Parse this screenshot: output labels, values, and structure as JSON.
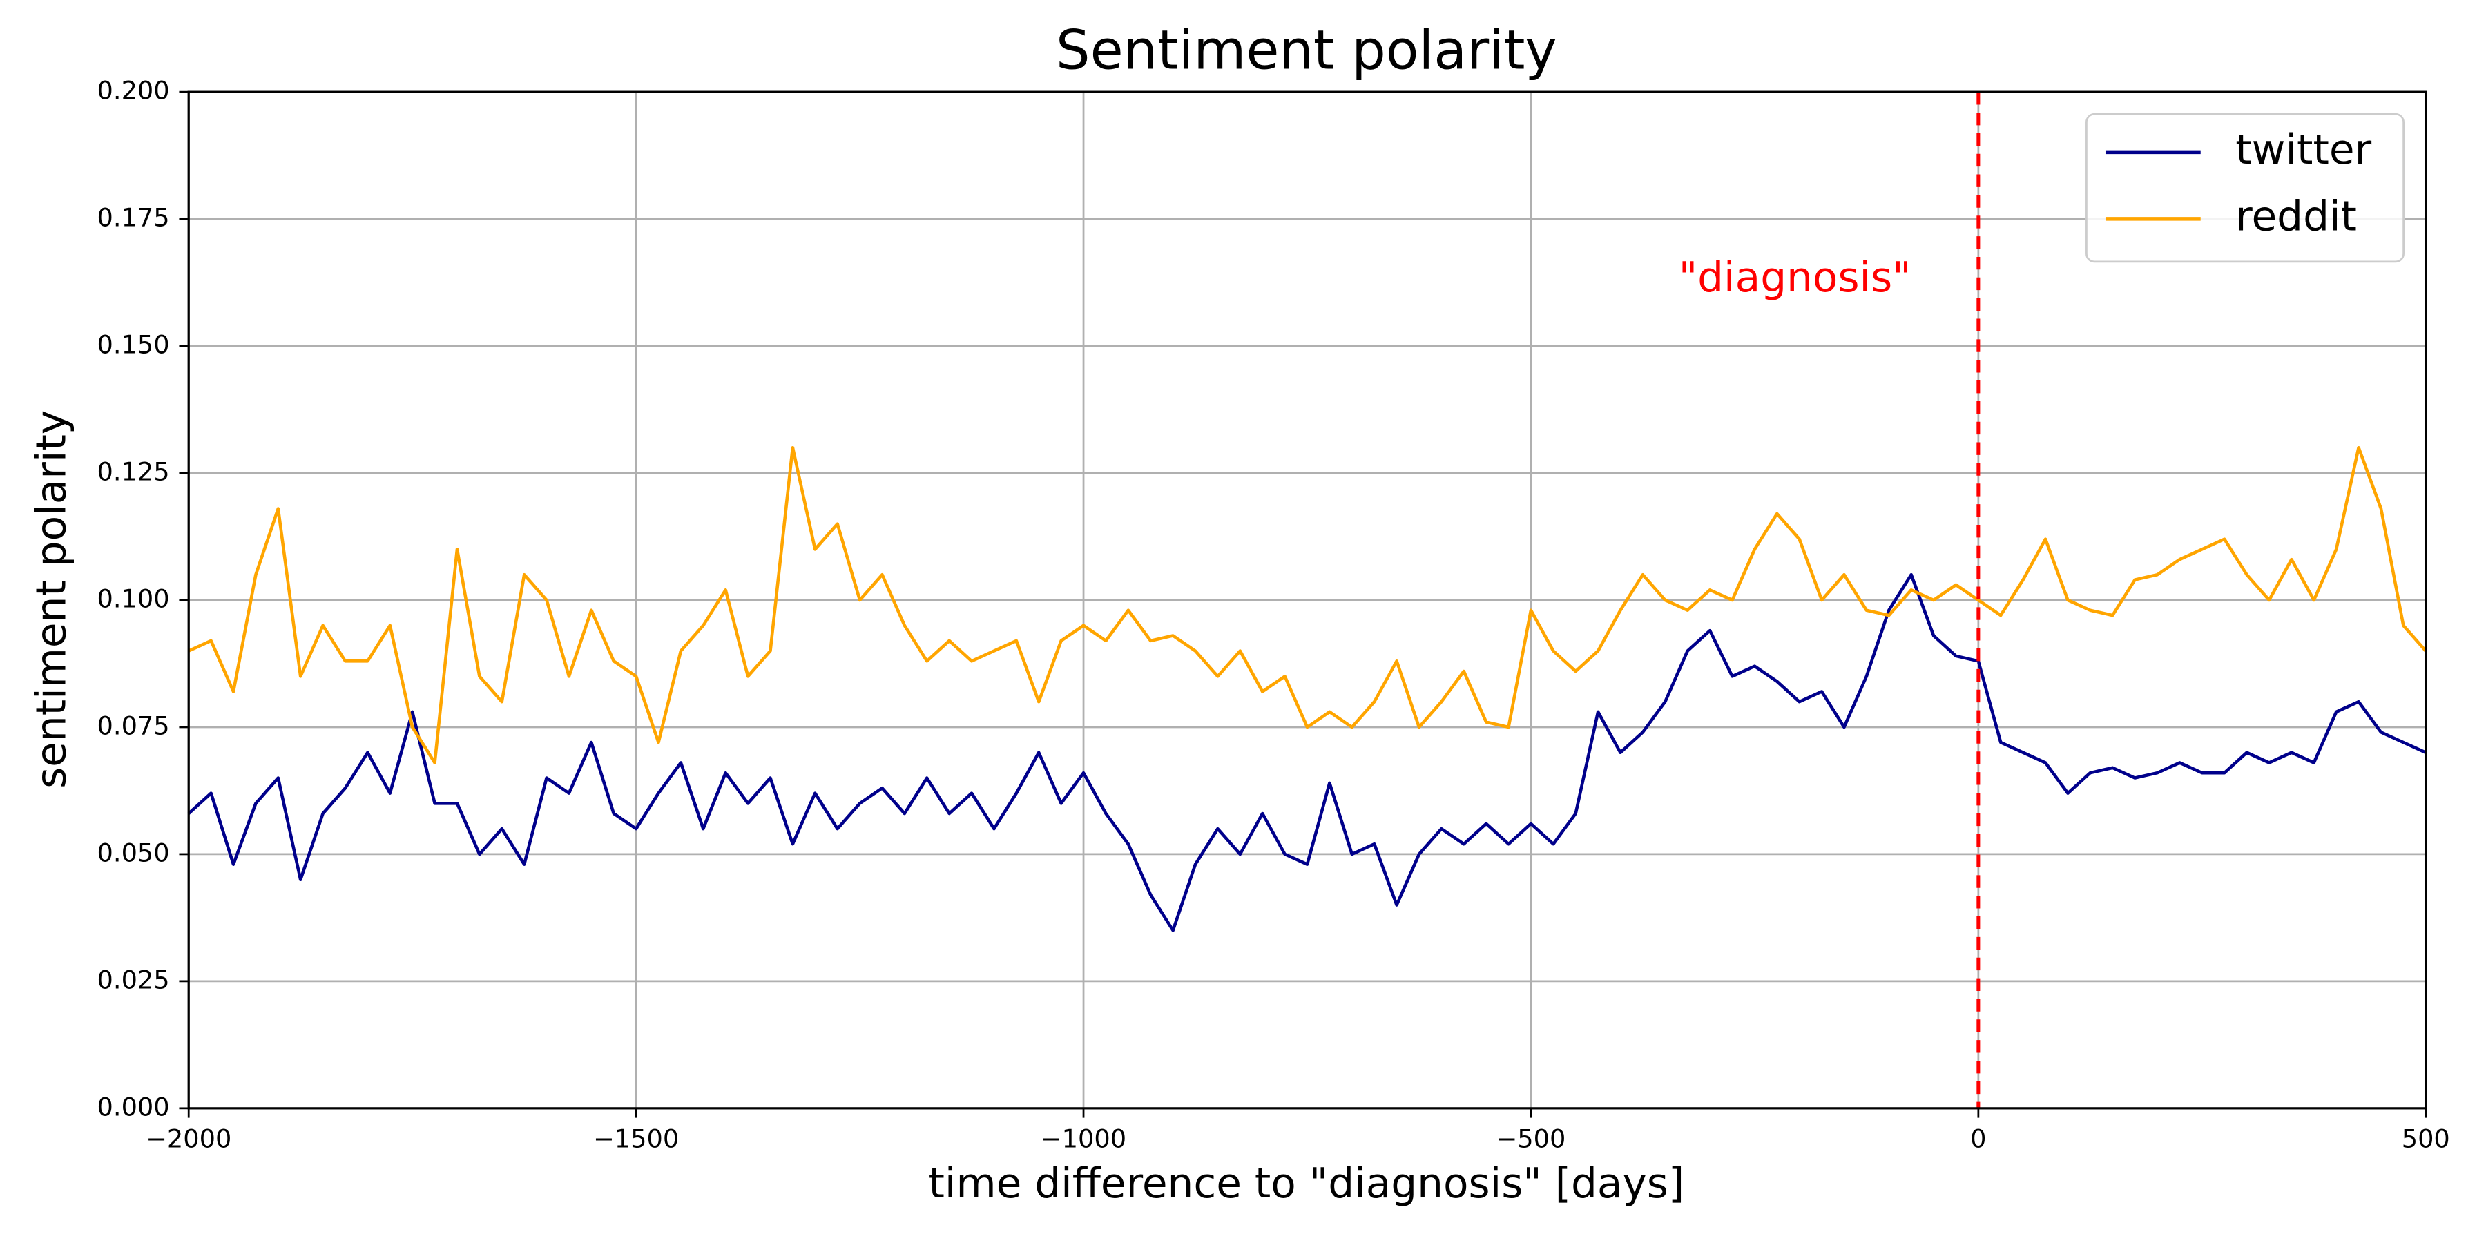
{
  "chart_data": {
    "type": "line",
    "title": "Sentiment polarity",
    "xlabel": "time difference to \"diagnosis\" [days]",
    "ylabel": "sentiment polarity",
    "x": [
      -2000,
      -1975,
      -1950,
      -1925,
      -1900,
      -1875,
      -1850,
      -1825,
      -1800,
      -1775,
      -1750,
      -1725,
      -1700,
      -1675,
      -1650,
      -1625,
      -1600,
      -1575,
      -1550,
      -1525,
      -1500,
      -1475,
      -1450,
      -1425,
      -1400,
      -1375,
      -1350,
      -1325,
      -1300,
      -1275,
      -1250,
      -1225,
      -1200,
      -1175,
      -1150,
      -1125,
      -1100,
      -1075,
      -1050,
      -1025,
      -1000,
      -975,
      -950,
      -925,
      -900,
      -875,
      -850,
      -825,
      -800,
      -775,
      -750,
      -725,
      -700,
      -675,
      -650,
      -625,
      -600,
      -575,
      -550,
      -525,
      -500,
      -475,
      -450,
      -425,
      -400,
      -375,
      -350,
      -325,
      -300,
      -275,
      -250,
      -225,
      -200,
      -175,
      -150,
      -125,
      -100,
      -75,
      -50,
      -25,
      0,
      25,
      50,
      75,
      100,
      125,
      150,
      175,
      200,
      225,
      250,
      275,
      300,
      325,
      350,
      375,
      400,
      425,
      450,
      475,
      500
    ],
    "series": [
      {
        "name": "twitter",
        "color": "#00008b",
        "values": [
          0.058,
          0.062,
          0.048,
          0.06,
          0.065,
          0.045,
          0.058,
          0.063,
          0.07,
          0.062,
          0.078,
          0.06,
          0.06,
          0.05,
          0.055,
          0.048,
          0.065,
          0.062,
          0.072,
          0.058,
          0.055,
          0.062,
          0.068,
          0.055,
          0.066,
          0.06,
          0.065,
          0.052,
          0.062,
          0.055,
          0.06,
          0.063,
          0.058,
          0.065,
          0.058,
          0.062,
          0.055,
          0.062,
          0.07,
          0.06,
          0.066,
          0.058,
          0.052,
          0.042,
          0.035,
          0.048,
          0.055,
          0.05,
          0.058,
          0.05,
          0.048,
          0.064,
          0.05,
          0.052,
          0.04,
          0.05,
          0.055,
          0.052,
          0.056,
          0.052,
          0.056,
          0.052,
          0.058,
          0.078,
          0.07,
          0.074,
          0.08,
          0.09,
          0.094,
          0.085,
          0.087,
          0.084,
          0.08,
          0.082,
          0.075,
          0.085,
          0.098,
          0.105,
          0.093,
          0.089,
          0.088,
          0.072,
          0.07,
          0.068,
          0.062,
          0.066,
          0.067,
          0.065,
          0.066,
          0.068,
          0.066,
          0.066,
          0.07,
          0.068,
          0.07,
          0.068,
          0.078,
          0.08,
          0.074,
          0.072,
          0.07
        ]
      },
      {
        "name": "reddit",
        "color": "#ffa500",
        "values": [
          0.09,
          0.092,
          0.082,
          0.105,
          0.118,
          0.085,
          0.095,
          0.088,
          0.088,
          0.095,
          0.075,
          0.068,
          0.11,
          0.085,
          0.08,
          0.105,
          0.1,
          0.085,
          0.098,
          0.088,
          0.085,
          0.072,
          0.09,
          0.095,
          0.102,
          0.085,
          0.09,
          0.13,
          0.11,
          0.115,
          0.1,
          0.105,
          0.095,
          0.088,
          0.092,
          0.088,
          0.09,
          0.092,
          0.08,
          0.092,
          0.095,
          0.092,
          0.098,
          0.092,
          0.093,
          0.09,
          0.085,
          0.09,
          0.082,
          0.085,
          0.075,
          0.078,
          0.075,
          0.08,
          0.088,
          0.075,
          0.08,
          0.086,
          0.076,
          0.075,
          0.098,
          0.09,
          0.086,
          0.09,
          0.098,
          0.105,
          0.1,
          0.098,
          0.102,
          0.1,
          0.11,
          0.117,
          0.112,
          0.1,
          0.105,
          0.098,
          0.097,
          0.102,
          0.1,
          0.103,
          0.1,
          0.097,
          0.104,
          0.112,
          0.1,
          0.098,
          0.097,
          0.104,
          0.105,
          0.108,
          0.11,
          0.112,
          0.105,
          0.1,
          0.108,
          0.1,
          0.11,
          0.13,
          0.118,
          0.095,
          0.09
        ]
      }
    ],
    "xlim": [
      -2000,
      500
    ],
    "ylim": [
      0,
      0.2
    ],
    "xticks": [
      {
        "value": -2000,
        "label": "−2000"
      },
      {
        "value": -1500,
        "label": "−1500"
      },
      {
        "value": -1000,
        "label": "−1000"
      },
      {
        "value": -500,
        "label": "−500"
      },
      0,
      500
    ],
    "yticks": [
      {
        "value": 0,
        "label": "0.000"
      },
      {
        "value": 0.025,
        "label": "0.025"
      },
      {
        "value": 0.05,
        "label": "0.050"
      },
      {
        "value": 0.075,
        "label": "0.075"
      },
      {
        "value": 0.1,
        "label": "0.100"
      },
      {
        "value": 0.125,
        "label": "0.125"
      },
      {
        "value": 0.15,
        "label": "0.150"
      },
      {
        "value": 0.175,
        "label": "0.175"
      },
      {
        "value": 0.2,
        "label": "0.200"
      }
    ],
    "grid": true,
    "legend": "upper right",
    "vline": {
      "x": 0,
      "color": "#ff0000"
    },
    "annotation": {
      "text": "\"diagnosis\"",
      "x": -205,
      "y": 0.163,
      "color": "#ff0000"
    }
  }
}
